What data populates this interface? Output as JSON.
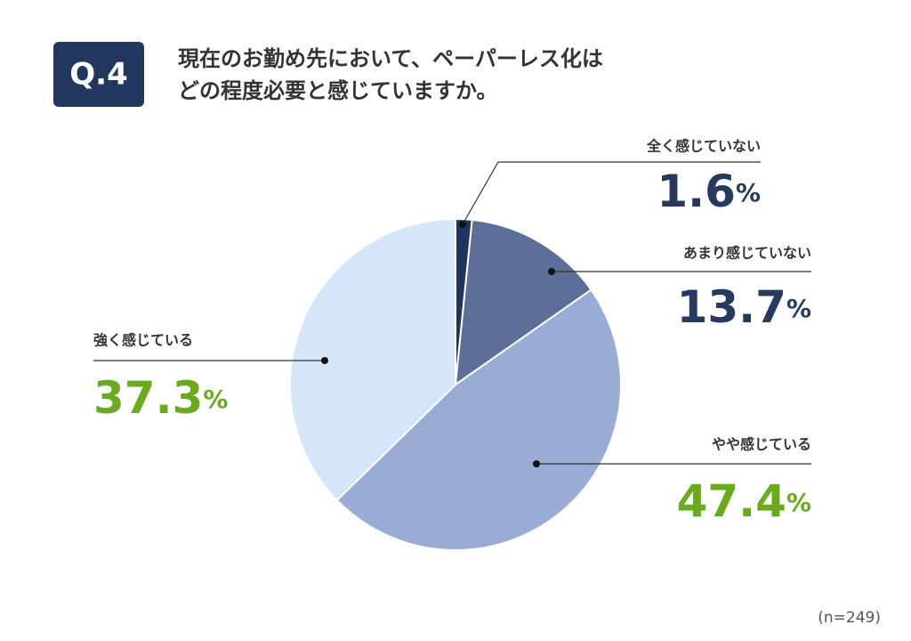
{
  "chart_data": {
    "type": "pie",
    "question_label": "Q.4",
    "title": [
      "現在のお勤め先において、ペーパーレス化は",
      "どの程度必要と感じていますか。"
    ],
    "categories": [
      "全く感じていない",
      "あまり感じていない",
      "やや感じている",
      "強く感じている"
    ],
    "values": [
      1.6,
      13.7,
      47.4,
      37.3
    ],
    "value_unit": "%",
    "colors": [
      "#1f3560",
      "#5c6f99",
      "#99acd6",
      "#d5e5fa"
    ],
    "label_colors": [
      "#263a60",
      "#263a60",
      "#6aab1c",
      "#6aab1c"
    ],
    "note": "(n=249)"
  }
}
